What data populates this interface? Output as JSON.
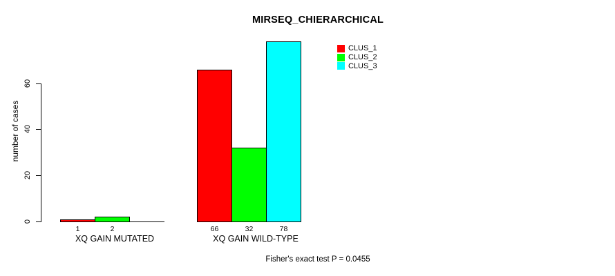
{
  "title": "MIRSEQ_CHIERARCHICAL",
  "y_axis_label": "number of cases",
  "caption": "Fisher's exact test P = 0.0455",
  "legend": {
    "position": "top-right",
    "items": [
      {
        "label": "CLUS_1",
        "color": "#ff0000"
      },
      {
        "label": "CLUS_2",
        "color": "#00ff00"
      },
      {
        "label": "CLUS_3",
        "color": "#00ffff"
      }
    ]
  },
  "chart_data": {
    "type": "bar",
    "title": "MIRSEQ_CHIERARCHICAL",
    "categories": [
      "XQ GAIN MUTATED",
      "XQ GAIN WILD-TYPE"
    ],
    "series": [
      {
        "name": "CLUS_1",
        "color": "#ff0000",
        "values": [
          1,
          66
        ]
      },
      {
        "name": "CLUS_2",
        "color": "#00ff00",
        "values": [
          2,
          32
        ]
      },
      {
        "name": "CLUS_3",
        "color": "#00ffff",
        "values": [
          0,
          78
        ]
      }
    ],
    "bar_value_labels": [
      [
        "1",
        "2",
        ""
      ],
      [
        "66",
        "32",
        "78"
      ]
    ],
    "xlabel": "",
    "ylabel": "number of cases",
    "yticks": [
      0,
      20,
      40,
      60
    ],
    "ylim": [
      0,
      78
    ],
    "grid": false,
    "bar_border_color": "#000000",
    "legend_position": "top-right",
    "annotation": "Fisher's exact test P = 0.0455"
  }
}
